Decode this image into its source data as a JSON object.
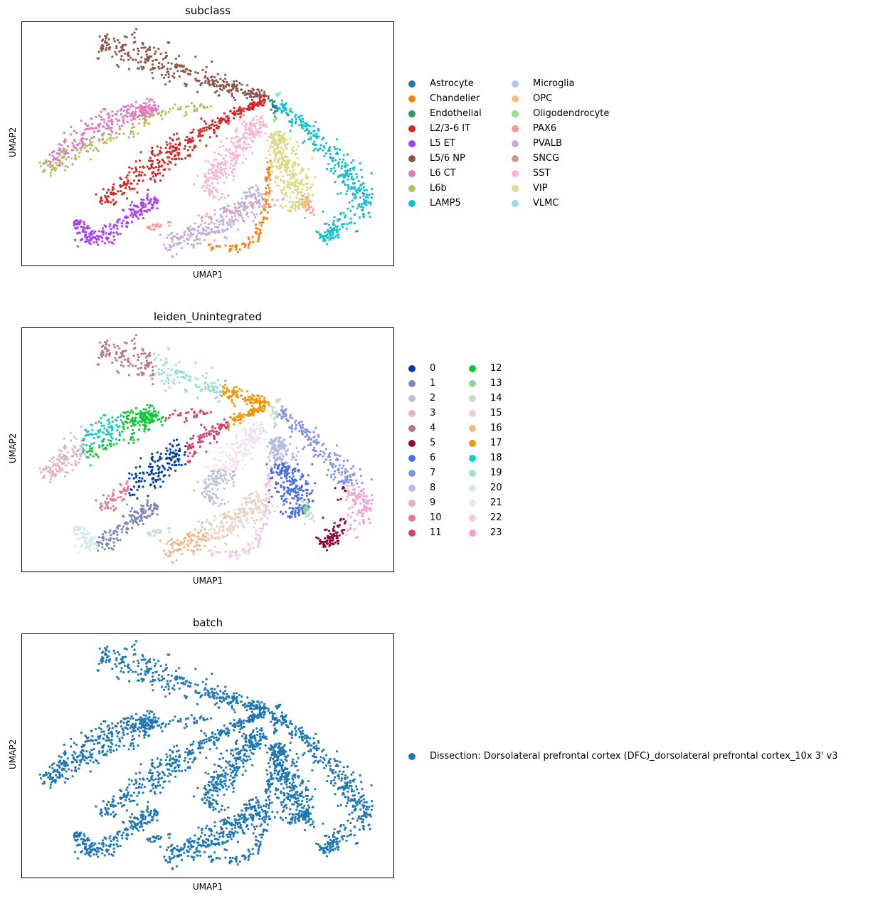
{
  "chart_data": [
    {
      "type": "scatter",
      "title": "subclass",
      "xlabel": "UMAP1",
      "ylabel": "UMAP2",
      "grid": false,
      "legend_position": "right",
      "legend_columns": 2,
      "categories": [
        {
          "name": "Astrocyte",
          "color": "#1f77b4"
        },
        {
          "name": "Chandelier",
          "color": "#ff7f0e"
        },
        {
          "name": "Endothelial",
          "color": "#279e68"
        },
        {
          "name": "L2/3-6 IT",
          "color": "#d62728"
        },
        {
          "name": "L5 ET",
          "color": "#aa40fc"
        },
        {
          "name": "L5/6 NP",
          "color": "#8c564b"
        },
        {
          "name": "L6 CT",
          "color": "#e377c2"
        },
        {
          "name": "L6b",
          "color": "#b5bd61"
        },
        {
          "name": "LAMP5",
          "color": "#17becf"
        },
        {
          "name": "Microglia",
          "color": "#aec7e8"
        },
        {
          "name": "OPC",
          "color": "#ffbb78"
        },
        {
          "name": "Oligodendrocyte",
          "color": "#98df8a"
        },
        {
          "name": "PAX6",
          "color": "#ff9896"
        },
        {
          "name": "PVALB",
          "color": "#c5b0d5"
        },
        {
          "name": "SNCG",
          "color": "#c49c94"
        },
        {
          "name": "SST",
          "color": "#f7b6d2"
        },
        {
          "name": "VIP",
          "color": "#dbdb8d"
        },
        {
          "name": "VLMC",
          "color": "#9edae5"
        }
      ]
    },
    {
      "type": "scatter",
      "title": "leiden_Unintegrated",
      "xlabel": "UMAP1",
      "ylabel": "UMAP2",
      "grid": false,
      "legend_position": "right",
      "legend_columns": 2,
      "categories": [
        {
          "name": "0",
          "color": "#023fa5"
        },
        {
          "name": "1",
          "color": "#7d87b9"
        },
        {
          "name": "2",
          "color": "#bec1d4"
        },
        {
          "name": "3",
          "color": "#d6bcc0"
        },
        {
          "name": "4",
          "color": "#bb7784"
        },
        {
          "name": "5",
          "color": "#8e063b"
        },
        {
          "name": "6",
          "color": "#4a6fe3"
        },
        {
          "name": "7",
          "color": "#8595e1"
        },
        {
          "name": "8",
          "color": "#b5bbe3"
        },
        {
          "name": "9",
          "color": "#e6afb9"
        },
        {
          "name": "10",
          "color": "#e07b91"
        },
        {
          "name": "11",
          "color": "#d33f6a"
        },
        {
          "name": "12",
          "color": "#11c638"
        },
        {
          "name": "13",
          "color": "#8dd593"
        },
        {
          "name": "14",
          "color": "#c6dec7"
        },
        {
          "name": "15",
          "color": "#ead3c6"
        },
        {
          "name": "16",
          "color": "#f0b98d"
        },
        {
          "name": "17",
          "color": "#ef9708"
        },
        {
          "name": "18",
          "color": "#0fcfc0"
        },
        {
          "name": "19",
          "color": "#9cded6"
        },
        {
          "name": "20",
          "color": "#d5eae7"
        },
        {
          "name": "21",
          "color": "#f3e1eb"
        },
        {
          "name": "22",
          "color": "#f6c4e1"
        },
        {
          "name": "23",
          "color": "#f79cd4"
        }
      ]
    },
    {
      "type": "scatter",
      "title": "batch",
      "xlabel": "UMAP1",
      "ylabel": "UMAP2",
      "grid": false,
      "legend_position": "right",
      "legend_columns": 1,
      "categories": [
        {
          "name": "Dissection: Dorsolateral prefrontal cortex (DFC)_dorsolateral prefrontal cortex_10x 3' v3",
          "color": "#1f77b4"
        }
      ]
    }
  ]
}
